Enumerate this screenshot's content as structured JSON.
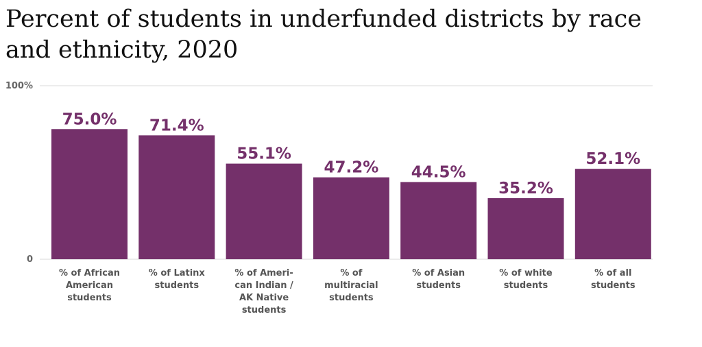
{
  "chart_data": {
    "type": "bar",
    "title": "Percent of students in underfunded districts by race and ethnicity, 2020",
    "categories": [
      [
        "% of African",
        "American",
        "students"
      ],
      [
        "% of Latinx",
        "students"
      ],
      [
        "% of Ameri-",
        "can Indian /",
        "AK Native",
        "students"
      ],
      [
        "% of",
        "multiracial",
        "students"
      ],
      [
        "% of Asian",
        "students"
      ],
      [
        "% of white",
        "students"
      ],
      [
        "% of all",
        "students"
      ]
    ],
    "values": [
      75.0,
      71.4,
      55.1,
      47.2,
      44.5,
      35.2,
      52.1
    ],
    "value_labels": [
      "75.0%",
      "71.4%",
      "55.1%",
      "47.2%",
      "44.5%",
      "35.2%",
      "52.1%"
    ],
    "ylim": [
      0,
      100
    ],
    "y_ticks": [
      {
        "value": 0,
        "label": "0"
      },
      {
        "value": 100,
        "label": "100%"
      }
    ],
    "bar_color": "#74306a",
    "label_color": "#74306a",
    "grid": true
  }
}
